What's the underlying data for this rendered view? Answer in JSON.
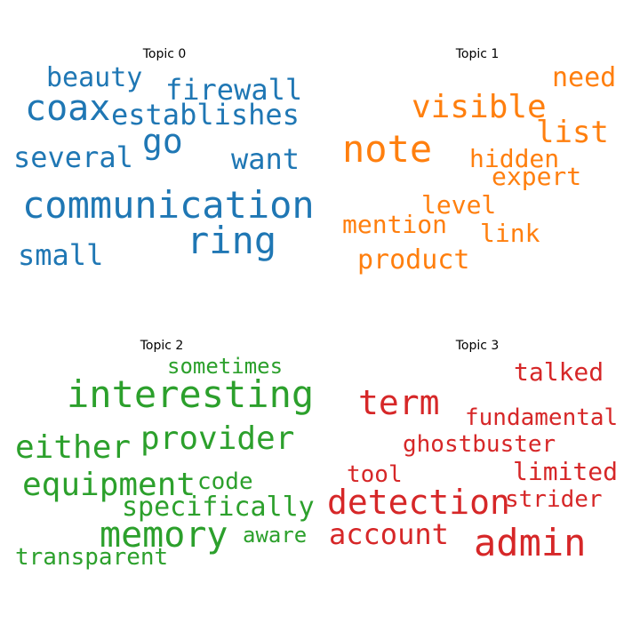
{
  "topics": [
    {
      "title": "Topic 0",
      "color": "#1f77b4",
      "words": [
        "beauty",
        "firewall",
        "coax",
        "establishes",
        "go",
        "several",
        "want",
        "communication",
        "ring",
        "small"
      ]
    },
    {
      "title": "Topic 1",
      "color": "#ff7f0e",
      "words": [
        "need",
        "visible",
        "list",
        "note",
        "hidden",
        "expert",
        "level",
        "mention",
        "link",
        "product"
      ]
    },
    {
      "title": "Topic 2",
      "color": "#2ca02c",
      "words": [
        "sometimes",
        "interesting",
        "provider",
        "either",
        "equipment",
        "code",
        "specifically",
        "memory",
        "aware",
        "transparent"
      ]
    },
    {
      "title": "Topic 3",
      "color": "#d62728",
      "words": [
        "talked",
        "term",
        "fundamental",
        "ghostbuster",
        "tool",
        "limited",
        "detection",
        "strider",
        "account",
        "admin"
      ]
    }
  ]
}
